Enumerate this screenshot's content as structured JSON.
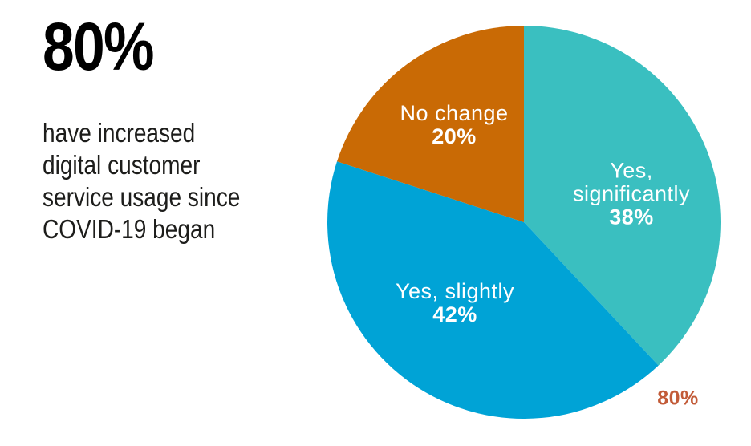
{
  "left_panel": {
    "headline": "80%",
    "description_lines": [
      "have increased",
      "digital customer",
      "service usage since",
      "COVID-19 began"
    ]
  },
  "chart_data": {
    "type": "pie",
    "title": "",
    "start_angle": "top",
    "direction": "clockwise",
    "slices": [
      {
        "id": "yes-significantly",
        "label": "Yes, significantly",
        "label_lines": [
          "Yes,",
          "significantly"
        ],
        "value": 38,
        "value_label": "38%",
        "color": "#3ABFC0"
      },
      {
        "id": "yes-slightly",
        "label": "Yes, slightly",
        "label_lines": [
          "Yes, slightly"
        ],
        "value": 42,
        "value_label": "42%",
        "color": "#00A3D6"
      },
      {
        "id": "no-change",
        "label": "No change",
        "label_lines": [
          "No change"
        ],
        "value": 20,
        "value_label": "20%",
        "color": "#C96A05"
      }
    ],
    "annotation": {
      "text": "80%",
      "color": "#C25B38"
    }
  }
}
